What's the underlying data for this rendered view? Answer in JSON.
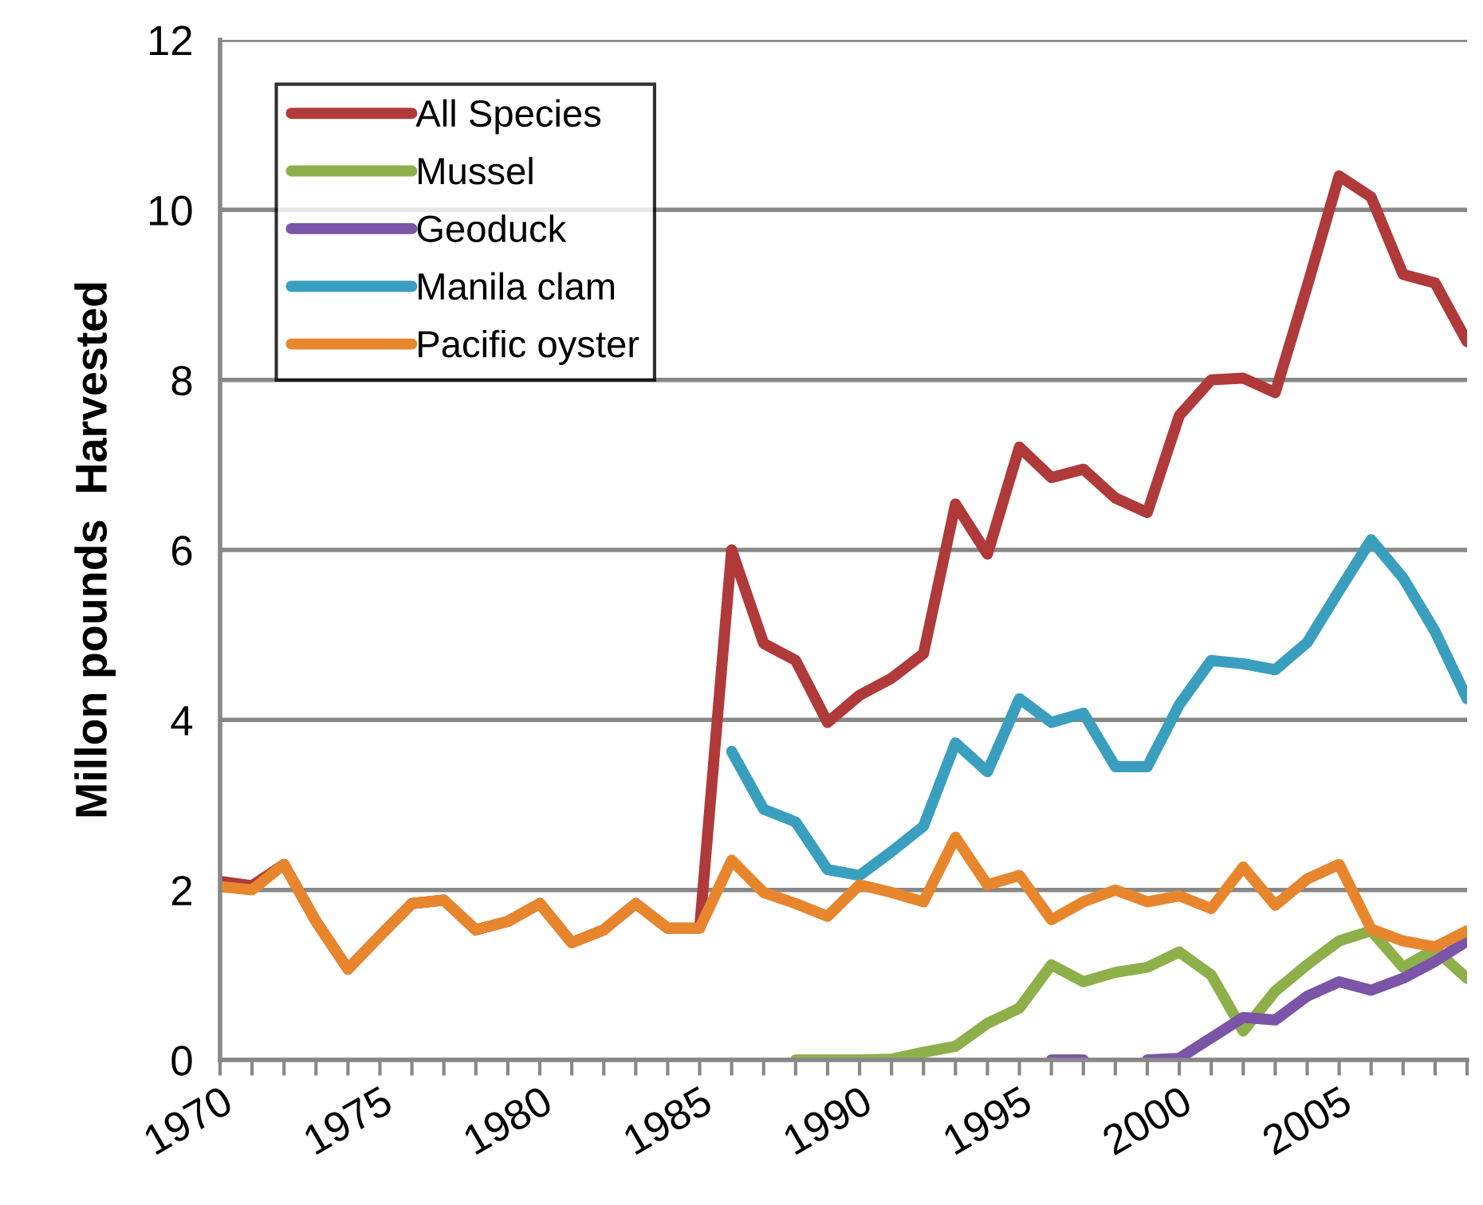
{
  "chart_data": {
    "type": "line",
    "ylabel": "Millon pounds  Harvested",
    "x": [
      1970,
      1971,
      1972,
      1973,
      1974,
      1975,
      1976,
      1977,
      1978,
      1979,
      1980,
      1981,
      1982,
      1983,
      1984,
      1985,
      1986,
      1987,
      1988,
      1989,
      1990,
      1991,
      1992,
      1993,
      1994,
      1995,
      1996,
      1997,
      1998,
      1999,
      2000,
      2001,
      2002,
      2003,
      2004,
      2005,
      2006,
      2007,
      2008,
      2009
    ],
    "series": [
      {
        "name": "All Species",
        "color": "#b03a3a",
        "values": [
          2.1,
          2.05,
          2.3,
          1.63,
          1.07,
          1.46,
          1.84,
          1.88,
          1.53,
          1.63,
          1.84,
          1.38,
          1.53,
          1.84,
          1.55,
          1.55,
          6.0,
          4.9,
          4.7,
          3.97,
          4.29,
          4.49,
          4.78,
          6.54,
          5.95,
          7.21,
          6.85,
          6.95,
          6.61,
          6.44,
          7.58,
          8.0,
          8.02,
          7.85,
          9.1,
          10.4,
          10.15,
          9.24,
          9.14,
          8.45
        ]
      },
      {
        "name": "Mussel",
        "color": "#8db04a",
        "values": [
          null,
          null,
          null,
          null,
          null,
          null,
          null,
          null,
          null,
          null,
          null,
          null,
          null,
          null,
          null,
          null,
          null,
          null,
          0,
          0,
          0,
          0.01,
          0.09,
          0.16,
          0.43,
          0.61,
          1.12,
          0.92,
          1.03,
          1.09,
          1.27,
          1.0,
          0.34,
          0.81,
          1.12,
          1.4,
          1.52,
          1.09,
          1.3,
          0.96
        ]
      },
      {
        "name": "Geoduck",
        "color": "#7a55a8",
        "values": [
          null,
          null,
          null,
          null,
          null,
          null,
          null,
          null,
          null,
          null,
          null,
          null,
          null,
          null,
          null,
          null,
          null,
          null,
          null,
          null,
          null,
          null,
          null,
          null,
          null,
          null,
          0,
          0,
          null,
          0,
          0.02,
          0.26,
          0.5,
          0.47,
          0.75,
          0.92,
          0.82,
          0.96,
          1.16,
          1.4
        ]
      },
      {
        "name": "Manila clam",
        "color": "#3a9fbf",
        "values": [
          null,
          null,
          null,
          null,
          null,
          null,
          null,
          null,
          null,
          null,
          null,
          null,
          null,
          null,
          null,
          null,
          3.63,
          2.95,
          2.8,
          2.24,
          2.17,
          2.45,
          2.75,
          3.73,
          3.39,
          4.25,
          3.97,
          4.08,
          3.45,
          3.45,
          4.18,
          4.7,
          4.66,
          4.59,
          4.91,
          5.52,
          6.12,
          5.67,
          5.04,
          4.25
        ]
      },
      {
        "name": "Pacific oyster",
        "color": "#e8862e",
        "values": [
          2.04,
          2.0,
          2.3,
          1.63,
          1.07,
          1.46,
          1.84,
          1.88,
          1.53,
          1.63,
          1.84,
          1.38,
          1.53,
          1.84,
          1.55,
          1.55,
          2.35,
          1.97,
          1.84,
          1.69,
          2.06,
          1.97,
          1.86,
          2.62,
          2.06,
          2.17,
          1.65,
          1.86,
          2.0,
          1.86,
          1.93,
          1.78,
          2.27,
          1.82,
          2.13,
          2.3,
          1.54,
          1.4,
          1.33,
          1.52
        ]
      }
    ],
    "xlim": [
      1970,
      2009
    ],
    "xticks": [
      1970,
      {
        "value": 1971,
        "label": null
      },
      {
        "value": 1972,
        "label": null
      },
      {
        "value": 1973,
        "label": null
      },
      {
        "value": 1974,
        "label": null
      },
      1975,
      {
        "value": 1976,
        "label": null
      },
      {
        "value": 1977,
        "label": null
      },
      {
        "value": 1978,
        "label": null
      },
      {
        "value": 1979,
        "label": null
      },
      1980,
      {
        "value": 1981,
        "label": null
      },
      {
        "value": 1982,
        "label": null
      },
      {
        "value": 1983,
        "label": null
      },
      {
        "value": 1984,
        "label": null
      },
      1985,
      {
        "value": 1986,
        "label": null
      },
      {
        "value": 1987,
        "label": null
      },
      {
        "value": 1988,
        "label": null
      },
      {
        "value": 1989,
        "label": null
      },
      1990,
      {
        "value": 1991,
        "label": null
      },
      {
        "value": 1992,
        "label": null
      },
      {
        "value": 1993,
        "label": null
      },
      {
        "value": 1994,
        "label": null
      },
      1995,
      {
        "value": 1996,
        "label": null
      },
      {
        "value": 1997,
        "label": null
      },
      {
        "value": 1998,
        "label": null
      },
      {
        "value": 1999,
        "label": null
      },
      2000,
      {
        "value": 2001,
        "label": null
      },
      {
        "value": 2002,
        "label": null
      },
      {
        "value": 2003,
        "label": null
      },
      {
        "value": 2004,
        "label": null
      },
      2005,
      {
        "value": 2006,
        "label": null
      },
      {
        "value": 2007,
        "label": null
      },
      {
        "value": 2008,
        "label": null
      },
      {
        "value": 2009,
        "label": null
      }
    ],
    "ylim": [
      0,
      12
    ],
    "yticks": [
      0,
      2,
      4,
      6,
      8,
      10,
      12
    ],
    "grid": "y",
    "legend": "top left",
    "marker": "none",
    "line_style": "solid"
  }
}
